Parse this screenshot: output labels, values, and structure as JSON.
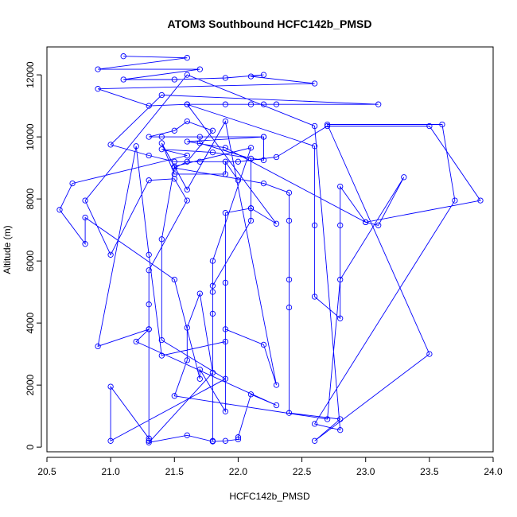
{
  "chart_data": {
    "type": "line",
    "title": "ATOM3 Southbound HCFC142b_PMSD",
    "xlabel": "HCFC142b_PMSD",
    "ylabel": "Altitude (m)",
    "xlim": [
      20.5,
      24.0
    ],
    "ylim": [
      -150,
      12900
    ],
    "xticks": [
      20.5,
      21.0,
      21.5,
      22.0,
      22.5,
      23.0,
      23.5,
      24.0
    ],
    "yticks": [
      0,
      2000,
      4000,
      6000,
      8000,
      10000,
      12000
    ],
    "xtick_labels": [
      "20.5",
      "21.0",
      "21.5",
      "22.0",
      "22.5",
      "23.0",
      "23.5",
      "24.0"
    ],
    "ytick_labels": [
      "0",
      "2000",
      "4000",
      "6000",
      "8000",
      "10000",
      "12000"
    ],
    "grid": false,
    "series_color": "#0000ff",
    "series": [
      {
        "points": [
          [
            21.1,
            12600
          ],
          [
            21.6,
            12550
          ],
          [
            20.9,
            12180
          ],
          [
            21.7,
            12180
          ],
          [
            21.1,
            11850
          ],
          [
            21.5,
            11850
          ],
          [
            21.9,
            11900
          ],
          [
            22.2,
            12000
          ],
          [
            22.1,
            11950
          ],
          [
            22.6,
            11720
          ],
          [
            20.9,
            11550
          ],
          [
            21.3,
            11000
          ],
          [
            21.6,
            11050
          ],
          [
            21.9,
            11050
          ],
          [
            22.1,
            11050
          ],
          [
            22.2,
            11050
          ],
          [
            22.3,
            11050
          ],
          [
            23.1,
            11050
          ],
          [
            21.4,
            11350
          ],
          [
            21.0,
            9750
          ],
          [
            21.3,
            9400
          ],
          [
            21.5,
            9200
          ],
          [
            21.7,
            9200
          ],
          [
            22.0,
            9200
          ],
          [
            22.3,
            9350
          ],
          [
            22.7,
            10350
          ],
          [
            23.5,
            10350
          ],
          [
            23.9,
            7950
          ],
          [
            23.0,
            7250
          ],
          [
            21.9,
            9650
          ],
          [
            21.6,
            9850
          ],
          [
            22.2,
            10000
          ],
          [
            21.4,
            10000
          ],
          [
            21.3,
            10000
          ],
          [
            21.5,
            10200
          ],
          [
            21.6,
            10500
          ],
          [
            21.8,
            10200
          ],
          [
            21.6,
            9200
          ],
          [
            21.5,
            9000
          ],
          [
            22.2,
            8500
          ],
          [
            22.4,
            8200
          ],
          [
            22.4,
            7300
          ],
          [
            22.4,
            5400
          ],
          [
            22.4,
            4500
          ],
          [
            22.4,
            1100
          ],
          [
            22.8,
            900
          ],
          [
            22.6,
            200
          ],
          [
            23.5,
            3000
          ],
          [
            22.7,
            10400
          ],
          [
            23.6,
            10400
          ],
          [
            23.7,
            7950
          ],
          [
            22.6,
            750
          ],
          [
            22.8,
            550
          ],
          [
            22.6,
            10350
          ],
          [
            21.6,
            12000
          ],
          [
            20.8,
            7950
          ],
          [
            21.0,
            6200
          ],
          [
            21.3,
            8600
          ],
          [
            21.5,
            8650
          ],
          [
            21.6,
            7950
          ],
          [
            21.3,
            5700
          ],
          [
            21.3,
            4600
          ],
          [
            21.3,
            3800
          ],
          [
            21.3,
            200
          ],
          [
            21.3,
            280
          ],
          [
            21.0,
            1950
          ],
          [
            21.0,
            200
          ],
          [
            21.9,
            2200
          ],
          [
            21.4,
            3450
          ],
          [
            21.4,
            6700
          ],
          [
            21.5,
            9050
          ],
          [
            22.1,
            9650
          ],
          [
            21.8,
            6000
          ],
          [
            21.8,
            5000
          ],
          [
            21.8,
            4300
          ],
          [
            21.8,
            200
          ],
          [
            21.8,
            5200
          ],
          [
            22.1,
            7300
          ],
          [
            22.1,
            7700
          ],
          [
            22.1,
            9300
          ],
          [
            21.7,
            9800
          ],
          [
            21.7,
            10000
          ],
          [
            22.2,
            10000
          ],
          [
            22.2,
            9250
          ],
          [
            21.8,
            9500
          ],
          [
            21.4,
            9600
          ],
          [
            21.6,
            9400
          ],
          [
            20.7,
            8500
          ],
          [
            20.6,
            7650
          ],
          [
            20.8,
            6550
          ],
          [
            20.8,
            7400
          ],
          [
            21.5,
            5400
          ],
          [
            21.7,
            2200
          ],
          [
            21.7,
            2500
          ],
          [
            21.9,
            1150
          ],
          [
            21.9,
            5300
          ],
          [
            21.9,
            7550
          ],
          [
            22.1,
            7700
          ],
          [
            22.3,
            7200
          ],
          [
            21.6,
            11050
          ],
          [
            22.6,
            9700
          ],
          [
            22.6,
            7150
          ],
          [
            22.6,
            4850
          ],
          [
            22.8,
            4150
          ],
          [
            22.8,
            7150
          ],
          [
            22.8,
            8400
          ],
          [
            23.0,
            7250
          ],
          [
            23.1,
            7150
          ],
          [
            23.3,
            8700
          ],
          [
            22.8,
            5400
          ],
          [
            22.7,
            900
          ],
          [
            21.5,
            1650
          ],
          [
            21.6,
            2800
          ],
          [
            21.6,
            3850
          ],
          [
            21.7,
            4950
          ],
          [
            21.8,
            2400
          ],
          [
            21.3,
            150
          ],
          [
            21.6,
            380
          ],
          [
            21.8,
            180
          ],
          [
            21.9,
            200
          ],
          [
            22.0,
            250
          ],
          [
            22.0,
            320
          ],
          [
            22.1,
            1700
          ],
          [
            22.3,
            1350
          ],
          [
            21.2,
            3400
          ],
          [
            21.3,
            3800
          ],
          [
            20.9,
            3250
          ],
          [
            21.2,
            9700
          ],
          [
            21.3,
            6200
          ],
          [
            21.4,
            2950
          ],
          [
            21.9,
            3400
          ],
          [
            21.9,
            3800
          ],
          [
            22.2,
            3300
          ],
          [
            22.3,
            2000
          ],
          [
            21.9,
            10500
          ],
          [
            21.6,
            8300
          ],
          [
            21.4,
            9800
          ],
          [
            21.5,
            8800
          ],
          [
            21.9,
            8800
          ],
          [
            21.9,
            9200
          ],
          [
            22.0,
            8600
          ]
        ]
      }
    ]
  }
}
